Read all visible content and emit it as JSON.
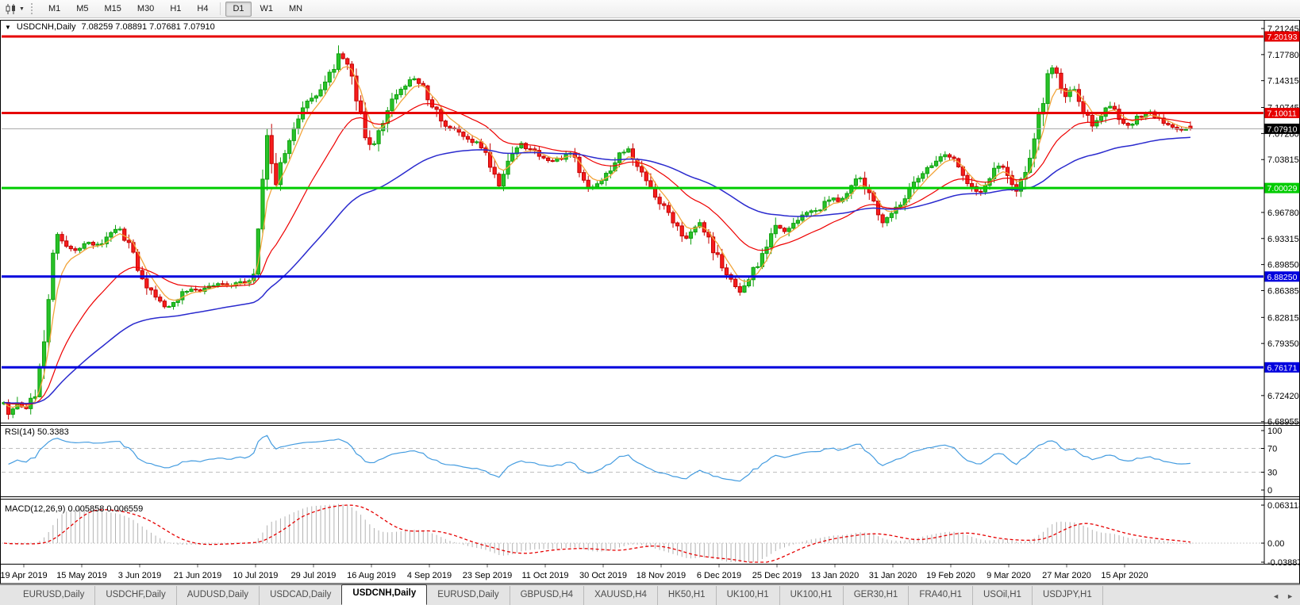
{
  "toolbar": {
    "timeframes": [
      "M1",
      "M5",
      "M15",
      "M30",
      "H1",
      "H4",
      "D1",
      "W1",
      "MN"
    ],
    "active_timeframe": "D1",
    "chart_type_icon": "candlestick-chart",
    "dropdown_caret": "▼"
  },
  "chart": {
    "title_symbol": "USDCNH,Daily",
    "title_ohlc": "7.08259 7.08891 7.07681 7.07910",
    "menu_caret": "▼"
  },
  "price_axis": {
    "ticks": [
      "7.21245",
      "7.17780",
      "7.14315",
      "7.10745",
      "7.07280",
      "7.03815",
      "6.96780",
      "6.93315",
      "6.89850",
      "6.86385",
      "6.82815",
      "6.79350",
      "6.72420",
      "6.68955"
    ]
  },
  "hlines": [
    {
      "label": "7.20193",
      "price": 7.20193,
      "color": "#e60000",
      "thickness": 3,
      "text_color": "#ffffff"
    },
    {
      "label": "7.10011",
      "price": 7.10011,
      "color": "#e60000",
      "thickness": 3,
      "text_color": "#ffffff"
    },
    {
      "label": "7.07910",
      "price": 7.0791,
      "color": "#a6a6a6",
      "thickness": 1,
      "label_bg": "#000000",
      "text_color": "#ffffff",
      "is_current_price": true
    },
    {
      "label": "7.00029",
      "price": 7.00029,
      "color": "#00cc00",
      "thickness": 3,
      "text_color": "#ffffff"
    },
    {
      "label": "6.88250",
      "price": 6.8825,
      "color": "#0000dd",
      "thickness": 3,
      "text_color": "#ffffff"
    },
    {
      "label": "6.76171",
      "price": 6.76171,
      "color": "#0000dd",
      "thickness": 3,
      "text_color": "#ffffff"
    }
  ],
  "indicators": {
    "rsi": {
      "label": "RSI(14) 50.3383",
      "value": 50.3383,
      "period": 14,
      "levels": [
        {
          "label": "100",
          "value": 100
        },
        {
          "label": "70",
          "value": 70
        },
        {
          "label": "30",
          "value": 30
        },
        {
          "label": "0",
          "value": 0
        }
      ],
      "line_color": "#449ce0"
    },
    "macd": {
      "label": "MACD(12,26,9) 0.005858 0.006559",
      "main_value": 0.005858,
      "signal_value": 0.006559,
      "axis_labels": [
        {
          "label": "0.063113",
          "value": 0.063113
        },
        {
          "label": "0.00",
          "value": 0
        },
        {
          "label": "-0.038872",
          "value": -0.038872
        }
      ],
      "histogram_color": "#b2b2b2",
      "signal_color": "#e60000"
    }
  },
  "time_axis": {
    "dates": [
      "19 Apr 2019",
      "15 May 2019",
      "3 Jun 2019",
      "21 Jun 2019",
      "10 Jul 2019",
      "29 Jul 2019",
      "16 Aug 2019",
      "4 Sep 2019",
      "23 Sep 2019",
      "11 Oct 2019",
      "30 Oct 2019",
      "18 Nov 2019",
      "6 Dec 2019",
      "25 Dec 2019",
      "13 Jan 2020",
      "31 Jan 2020",
      "19 Feb 2020",
      "9 Mar 2020",
      "27 Mar 2020",
      "15 Apr 2020"
    ]
  },
  "tabs": {
    "items": [
      "EURUSD,Daily",
      "USDCHF,Daily",
      "AUDUSD,Daily",
      "USDCAD,Daily",
      "USDCNH,Daily",
      "EURUSD,Daily",
      "GBPUSD,H4",
      "XAUUSD,H4",
      "HK50,H1",
      "UK100,H1",
      "UK100,H1",
      "GER30,H1",
      "FRA40,H1",
      "USOil,H1",
      "USDJPY,H1"
    ],
    "active_index": 4,
    "nav_left": "◄",
    "nav_right": "►"
  },
  "chart_data": {
    "type": "candlestick",
    "symbol": "USDCNH",
    "timeframe": "Daily",
    "current_bar": {
      "open": 7.08259,
      "high": 7.08891,
      "low": 7.07681,
      "close": 7.0791
    },
    "bull_color": "#29c229",
    "bull_border": "#0da00d",
    "bear_color": "#f61d1d",
    "bear_border": "#c40000",
    "moving_averages": [
      {
        "name": "fast",
        "period": 5,
        "color": "#f2a53c",
        "width": 1.3
      },
      {
        "name": "medium",
        "period": 22,
        "color": "#ee0000",
        "width": 1.2
      },
      {
        "name": "slow",
        "period": 60,
        "color": "#2a2ace",
        "width": 1.5
      }
    ],
    "price_path_anchors": [
      [
        4,
        6.715
      ],
      [
        12,
        6.7
      ],
      [
        22,
        6.712
      ],
      [
        32,
        6.705
      ],
      [
        45,
        6.728
      ],
      [
        55,
        6.8
      ],
      [
        65,
        6.9
      ],
      [
        72,
        6.938
      ],
      [
        82,
        6.927
      ],
      [
        92,
        6.918
      ],
      [
        102,
        6.922
      ],
      [
        112,
        6.928
      ],
      [
        122,
        6.924
      ],
      [
        132,
        6.932
      ],
      [
        142,
        6.944
      ],
      [
        150,
        6.948
      ],
      [
        158,
        6.932
      ],
      [
        168,
        6.91
      ],
      [
        180,
        6.878
      ],
      [
        192,
        6.858
      ],
      [
        205,
        6.846
      ],
      [
        215,
        6.841
      ],
      [
        228,
        6.858
      ],
      [
        240,
        6.865
      ],
      [
        252,
        6.862
      ],
      [
        265,
        6.868
      ],
      [
        278,
        6.872
      ],
      [
        292,
        6.871
      ],
      [
        305,
        6.875
      ],
      [
        318,
        6.88
      ],
      [
        324,
        6.92
      ],
      [
        330,
        7.01
      ],
      [
        336,
        7.065
      ],
      [
        342,
        7.04
      ],
      [
        348,
        7.012
      ],
      [
        356,
        7.045
      ],
      [
        365,
        7.07
      ],
      [
        374,
        7.085
      ],
      [
        383,
        7.105
      ],
      [
        392,
        7.12
      ],
      [
        401,
        7.128
      ],
      [
        410,
        7.142
      ],
      [
        419,
        7.158
      ],
      [
        428,
        7.182
      ],
      [
        436,
        7.168
      ],
      [
        444,
        7.14
      ],
      [
        452,
        7.105
      ],
      [
        461,
        7.072
      ],
      [
        470,
        7.052
      ],
      [
        479,
        7.083
      ],
      [
        489,
        7.11
      ],
      [
        499,
        7.122
      ],
      [
        509,
        7.138
      ],
      [
        519,
        7.148
      ],
      [
        529,
        7.14
      ],
      [
        539,
        7.122
      ],
      [
        549,
        7.102
      ],
      [
        560,
        7.086
      ],
      [
        572,
        7.078
      ],
      [
        585,
        7.07
      ],
      [
        598,
        7.062
      ],
      [
        611,
        7.048
      ],
      [
        622,
        7.02
      ],
      [
        630,
        7.002
      ],
      [
        638,
        7.028
      ],
      [
        648,
        7.05
      ],
      [
        658,
        7.058
      ],
      [
        670,
        7.05
      ],
      [
        682,
        7.042
      ],
      [
        695,
        7.035
      ],
      [
        708,
        7.04
      ],
      [
        720,
        7.046
      ],
      [
        732,
        7.022
      ],
      [
        744,
        6.998
      ],
      [
        756,
        7.008
      ],
      [
        768,
        7.025
      ],
      [
        780,
        7.045
      ],
      [
        792,
        7.05
      ],
      [
        804,
        7.032
      ],
      [
        816,
        7.005
      ],
      [
        828,
        6.985
      ],
      [
        840,
        6.972
      ],
      [
        852,
        6.952
      ],
      [
        862,
        6.93
      ],
      [
        872,
        6.945
      ],
      [
        882,
        6.952
      ],
      [
        892,
        6.935
      ],
      [
        902,
        6.912
      ],
      [
        912,
        6.895
      ],
      [
        922,
        6.878
      ],
      [
        930,
        6.856
      ],
      [
        938,
        6.868
      ],
      [
        948,
        6.888
      ],
      [
        958,
        6.905
      ],
      [
        968,
        6.928
      ],
      [
        978,
        6.95
      ],
      [
        988,
        6.942
      ],
      [
        998,
        6.955
      ],
      [
        1010,
        6.963
      ],
      [
        1022,
        6.968
      ],
      [
        1034,
        6.973
      ],
      [
        1046,
        6.987
      ],
      [
        1058,
        6.982
      ],
      [
        1070,
        6.998
      ],
      [
        1082,
        7.015
      ],
      [
        1092,
        6.998
      ],
      [
        1102,
        6.975
      ],
      [
        1112,
        6.958
      ],
      [
        1122,
        6.962
      ],
      [
        1132,
        6.978
      ],
      [
        1142,
        6.992
      ],
      [
        1152,
        7.005
      ],
      [
        1162,
        7.018
      ],
      [
        1172,
        7.03
      ],
      [
        1182,
        7.042
      ],
      [
        1192,
        7.045
      ],
      [
        1202,
        7.038
      ],
      [
        1212,
        7.022
      ],
      [
        1222,
        7.005
      ],
      [
        1232,
        6.992
      ],
      [
        1242,
        7.005
      ],
      [
        1252,
        7.022
      ],
      [
        1262,
        7.032
      ],
      [
        1272,
        7.01
      ],
      [
        1282,
        6.995
      ],
      [
        1292,
        7.025
      ],
      [
        1302,
        7.06
      ],
      [
        1312,
        7.105
      ],
      [
        1320,
        7.152
      ],
      [
        1328,
        7.16
      ],
      [
        1336,
        7.138
      ],
      [
        1344,
        7.12
      ],
      [
        1352,
        7.138
      ],
      [
        1360,
        7.118
      ],
      [
        1368,
        7.098
      ],
      [
        1376,
        7.082
      ],
      [
        1384,
        7.092
      ],
      [
        1392,
        7.104
      ],
      [
        1400,
        7.112
      ],
      [
        1408,
        7.098
      ],
      [
        1416,
        7.088
      ],
      [
        1424,
        7.084
      ],
      [
        1432,
        7.092
      ],
      [
        1440,
        7.098
      ],
      [
        1448,
        7.102
      ],
      [
        1456,
        7.095
      ],
      [
        1464,
        7.086
      ],
      [
        1472,
        7.082
      ],
      [
        1480,
        7.08
      ],
      [
        1490,
        7.079
      ],
      [
        1500,
        7.0791
      ]
    ]
  }
}
